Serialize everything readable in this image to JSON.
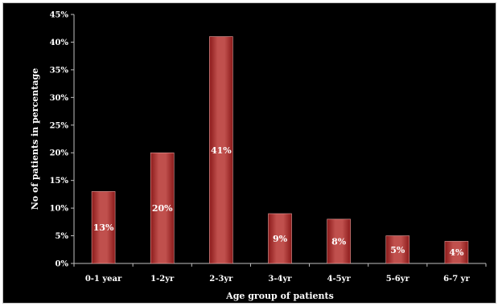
{
  "chart_data": {
    "type": "bar",
    "categories": [
      "0-1 year",
      "1-2yr",
      "2-3yr",
      "3-4yr",
      "4-5yr",
      "5-6yr",
      "6-7 yr"
    ],
    "values": [
      13,
      20,
      41,
      9,
      8,
      5,
      4
    ],
    "data_labels": [
      "13%",
      "20%",
      "41%",
      "9%",
      "8%",
      "5%",
      "4%"
    ],
    "y_ticks": [
      0,
      5,
      10,
      15,
      20,
      25,
      30,
      35,
      40,
      45
    ],
    "y_tick_labels": [
      "0%",
      "5%",
      "10%",
      "15%",
      "20%",
      "25%",
      "30%",
      "35%",
      "40%",
      "45%"
    ],
    "ylim": [
      0,
      45
    ],
    "xlabel": "Age group of patients",
    "ylabel": "No of patients in percentage",
    "title": "",
    "grid": false,
    "legend": "none",
    "colors": {
      "background": "#000000",
      "bar_top": "#c0504d",
      "bar_bottom": "#8b1a1a",
      "bar_edge": "#e8a19f",
      "text": "#ffffff",
      "axis": "#bfbfbf"
    }
  }
}
